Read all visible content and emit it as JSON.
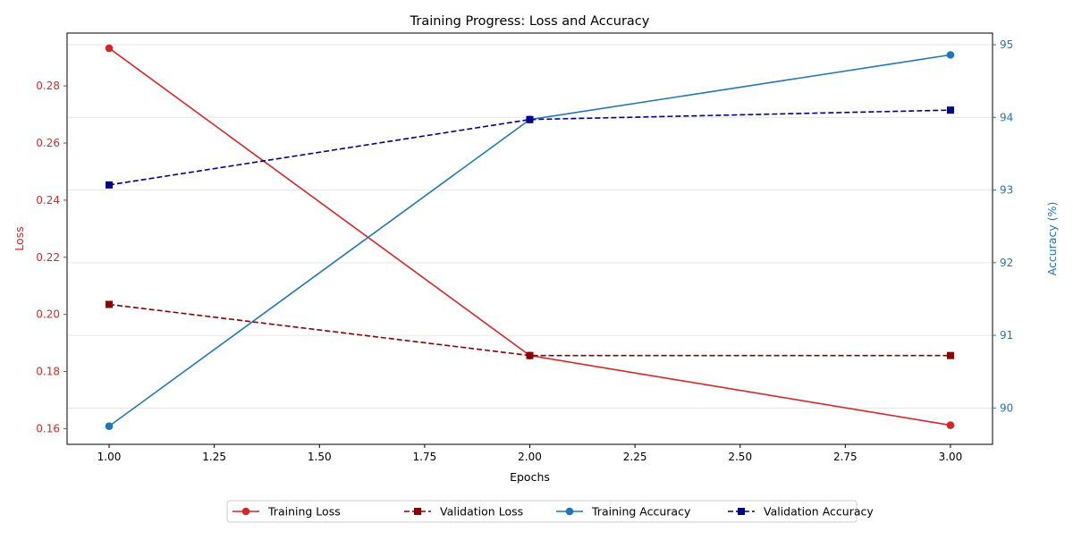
{
  "chart_data": {
    "type": "line",
    "title": "Training Progress: Loss and Accuracy",
    "xlabel": "Epochs",
    "ylabel_left": "Loss",
    "ylabel_right": "Accuracy (%)",
    "x": [
      1,
      2,
      3
    ],
    "xlim": [
      0.9,
      3.1
    ],
    "ylim_left": [
      0.1545,
      0.2985
    ],
    "ylim_right": [
      89.5,
      95.16
    ],
    "xticks": [
      1.0,
      1.25,
      1.5,
      1.75,
      2.0,
      2.25,
      2.5,
      2.75,
      3.0
    ],
    "xtick_labels": [
      "1.00",
      "1.25",
      "1.50",
      "1.75",
      "2.00",
      "2.25",
      "2.50",
      "2.75",
      "3.00"
    ],
    "yticks_left": [
      0.16,
      0.18,
      0.2,
      0.22,
      0.24,
      0.26,
      0.28
    ],
    "ytick_labels_left": [
      "0.16",
      "0.18",
      "0.20",
      "0.22",
      "0.24",
      "0.26",
      "0.28"
    ],
    "yticks_right": [
      90,
      91,
      92,
      93,
      94,
      95
    ],
    "ytick_labels_right": [
      "90",
      "91",
      "92",
      "93",
      "94",
      "95"
    ],
    "grid": "horizontal (right axis)",
    "legend_position": "bottom-center",
    "left_axis_color": "#d62728",
    "right_axis_color": "#1f77b4",
    "series": [
      {
        "name": "Training Loss",
        "axis": "left",
        "values": [
          0.2932,
          0.1856,
          0.1612
        ],
        "color": "#d62728",
        "linestyle": "solid",
        "marker": "circle"
      },
      {
        "name": "Validation Loss",
        "axis": "left",
        "values": [
          0.2035,
          0.1856,
          0.1856
        ],
        "color": "#8b0000",
        "linestyle": "dashed",
        "marker": "square"
      },
      {
        "name": "Training Accuracy",
        "axis": "right",
        "values": [
          89.75,
          93.97,
          94.86
        ],
        "color": "#1f77b4",
        "linestyle": "solid",
        "marker": "circle"
      },
      {
        "name": "Validation Accuracy",
        "axis": "right",
        "values": [
          93.07,
          93.97,
          94.1
        ],
        "color": "#00008b",
        "linestyle": "dashed",
        "marker": "square"
      }
    ]
  }
}
